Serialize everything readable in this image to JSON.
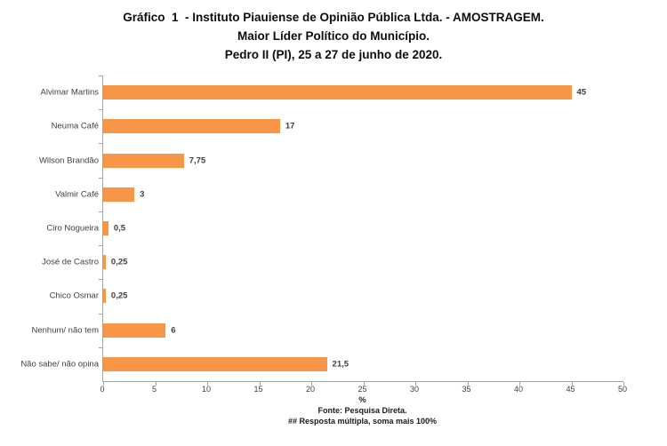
{
  "title": {
    "line1": "Gráfico  1  - Instituto Piauiense de Opinião Pública Ltda. - AMOSTRAGEM.",
    "line2": "Maior Líder Político do Município.",
    "line3": "Pedro II (PI), 25 a 27 de junho de 2020."
  },
  "chart_data": {
    "type": "bar",
    "orientation": "horizontal",
    "categories": [
      "Alvimar Martins",
      "Neuma Café",
      "Wilson Brandão",
      "Valmir Café",
      "Ciro Nogueira",
      "José de Castro",
      "Chico Osmar",
      "Nenhum/ não tem",
      "Não sabe/ não opina"
    ],
    "values": [
      45,
      17,
      7.75,
      3,
      0.5,
      0.25,
      0.25,
      6,
      21.5
    ],
    "value_labels": [
      "45",
      "17",
      "7,75",
      "3",
      "0,5",
      "0,25",
      "0,25",
      "6",
      "21,5"
    ],
    "xlabel": "%",
    "xlim": [
      0,
      50
    ],
    "x_ticks": [
      0,
      5,
      10,
      15,
      20,
      25,
      30,
      35,
      40,
      45,
      50
    ],
    "bar_color": "#f79646",
    "axis_color": "#a6a6a6",
    "grid": false,
    "legend": false
  },
  "footer": {
    "line1": "Fonte: Pesquisa Direta.",
    "line2": "##  Resposta múltipla, soma mais 100%"
  }
}
